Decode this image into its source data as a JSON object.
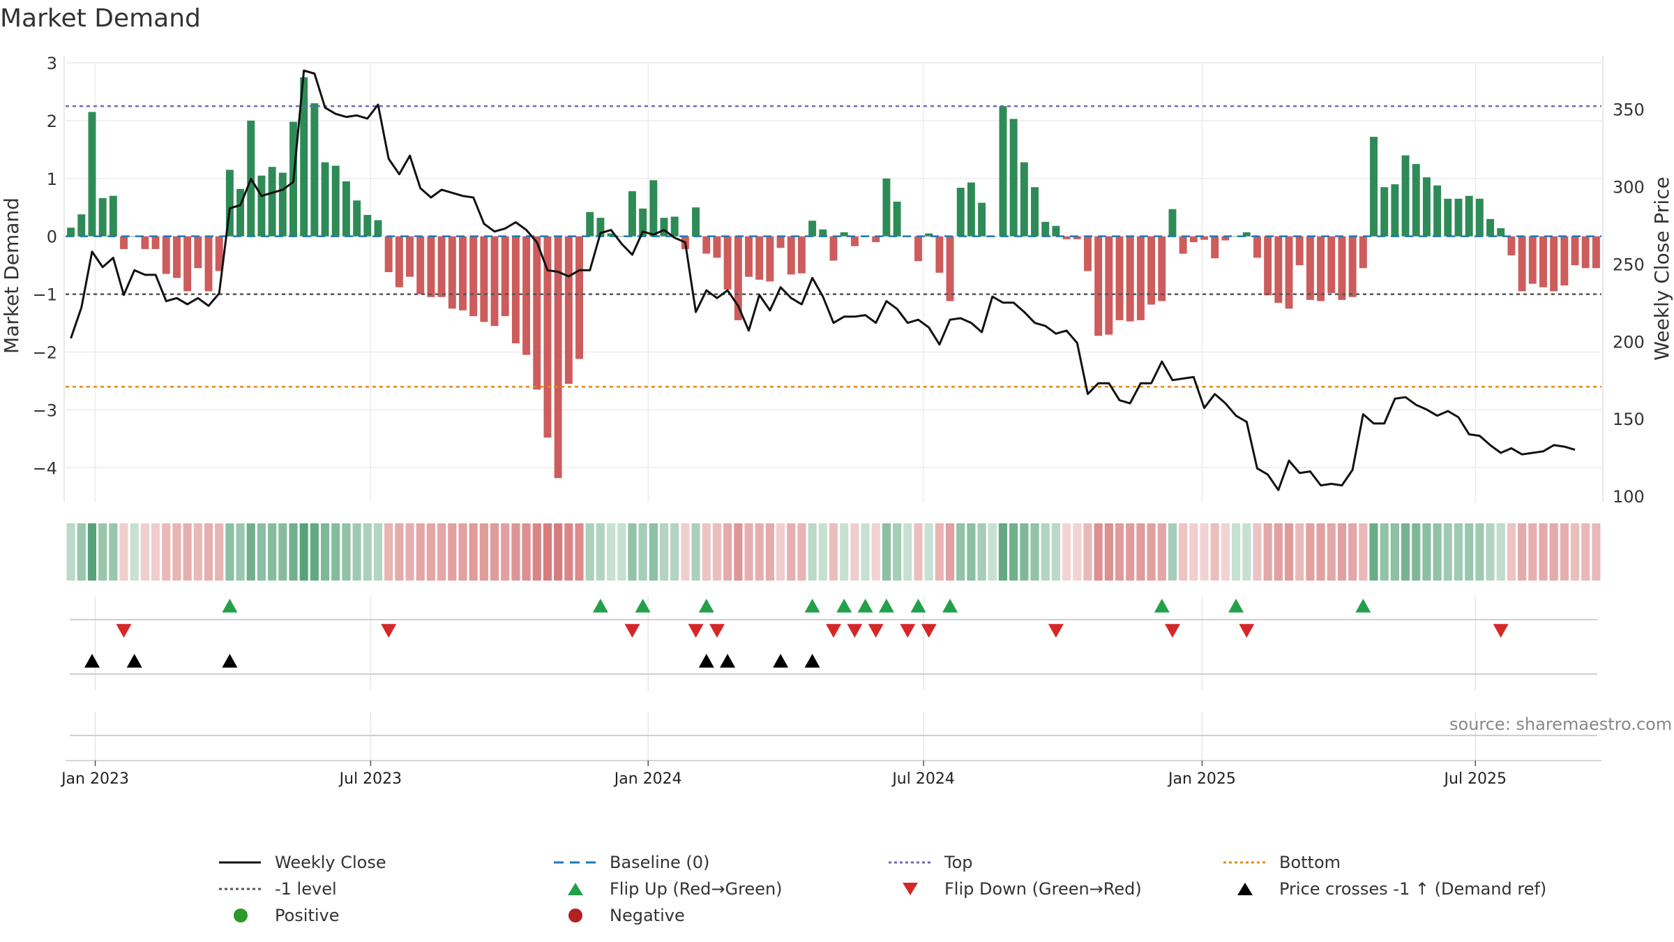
{
  "title": "Market Demand",
  "source_label": "source: sharemaestro.com",
  "colors": {
    "positive": "#2e8b57",
    "negative": "#cd5c5c",
    "price_line": "#111111",
    "top": "#6a6ab8",
    "minus_one": "#555555",
    "bottom": "#e08a1e",
    "baseline": "#1f77b4",
    "flip_up": "#23a04a",
    "flip_down": "#d62728",
    "cross": "#000000",
    "positive_dot": "#2a9a2a",
    "negative_dot": "#b22222"
  },
  "chart_data": {
    "type": "bar",
    "title": "Market Demand",
    "ylabel": "Market Demand",
    "y2label": "Weekly Close Price",
    "ylim": [
      -4.6,
      3.0
    ],
    "yticks": [
      3,
      2,
      1,
      0,
      -1,
      -2,
      -3,
      -4
    ],
    "ytick_labels": [
      "3",
      "2",
      "1",
      "0",
      "−1",
      "−2",
      "−3",
      "−4"
    ],
    "y2lim": [
      96,
      380
    ],
    "y2ticks": [
      350,
      300,
      250,
      200,
      150,
      100
    ],
    "y2tick_labels": [
      "350",
      "300",
      "250",
      "200",
      "150",
      "100"
    ],
    "xticks": [
      {
        "label": "Jan 2023",
        "index": 2.3
      },
      {
        "label": "Jul 2023",
        "index": 28.3
      },
      {
        "label": "Jan 2024",
        "index": 54.5
      },
      {
        "label": "Jul 2024",
        "index": 80.5
      },
      {
        "label": "Jan 2025",
        "index": 106.8
      },
      {
        "label": "Jul 2025",
        "index": 132.6
      }
    ],
    "reference_lines": {
      "top": 2.25,
      "minus_one": -1.0,
      "bottom": -2.6,
      "baseline": 0
    },
    "demand": [
      0.15,
      0.38,
      2.15,
      0.66,
      0.7,
      -0.22,
      0.0,
      -0.22,
      -0.22,
      -0.65,
      -0.72,
      -0.95,
      -0.55,
      -0.95,
      -0.6,
      1.15,
      0.82,
      2.0,
      1.05,
      1.2,
      1.1,
      1.98,
      2.75,
      2.3,
      1.28,
      1.22,
      0.95,
      0.62,
      0.37,
      0.28,
      -0.62,
      -0.88,
      -0.7,
      -1.0,
      -1.05,
      -1.05,
      -1.25,
      -1.28,
      -1.38,
      -1.48,
      -1.55,
      -1.38,
      -1.85,
      -2.05,
      -2.65,
      -3.48,
      -4.18,
      -2.55,
      -2.12,
      0.42,
      0.32,
      0.05,
      0.0,
      0.78,
      0.48,
      0.97,
      0.32,
      0.34,
      -0.22,
      0.5,
      -0.3,
      -0.37,
      -0.92,
      -1.45,
      -0.7,
      -0.75,
      -0.78,
      -0.2,
      -0.66,
      -0.64,
      0.27,
      0.12,
      -0.42,
      0.07,
      -0.17,
      0.0,
      -0.1,
      1.0,
      0.6,
      0.0,
      -0.43,
      0.05,
      -0.63,
      -1.12,
      0.84,
      0.93,
      0.58,
      0.0,
      2.25,
      2.03,
      1.28,
      0.85,
      0.25,
      0.18,
      -0.05,
      -0.05,
      -0.6,
      -1.72,
      -1.7,
      -1.45,
      -1.47,
      -1.45,
      -1.18,
      -1.12,
      0.47,
      -0.3,
      -0.1,
      -0.06,
      -0.38,
      -0.07,
      0.0,
      0.07,
      -0.37,
      -1.02,
      -1.15,
      -1.25,
      -0.5,
      -1.1,
      -1.12,
      -0.98,
      -1.1,
      -1.05,
      -0.55,
      1.72,
      0.85,
      0.9,
      1.4,
      1.25,
      1.02,
      0.88,
      0.65,
      0.65,
      0.7,
      0.65,
      0.3,
      0.14,
      -0.33,
      -0.95,
      -0.82,
      -0.88,
      -0.95,
      -0.85,
      -0.5,
      -0.55,
      -0.55
    ],
    "price": [
      202,
      222,
      258,
      248,
      254,
      230,
      246,
      243,
      243,
      226,
      228,
      224,
      228,
      223,
      231,
      286,
      288,
      305,
      294,
      296,
      298,
      303,
      375,
      373,
      351,
      347,
      345,
      346,
      344,
      353,
      318,
      308,
      320,
      299,
      293,
      298,
      296,
      294,
      293,
      276,
      271,
      273,
      277,
      272,
      264,
      246,
      245,
      242,
      246,
      246,
      270,
      272,
      263,
      256,
      271,
      269,
      272,
      267,
      264,
      219,
      233,
      228,
      233,
      223,
      207,
      230,
      220,
      235,
      228,
      224,
      241,
      229,
      212,
      216,
      216,
      217,
      212,
      226,
      221,
      212,
      214,
      209,
      198,
      214,
      215,
      212,
      206,
      229,
      225,
      225,
      219,
      212,
      210,
      205,
      207,
      199,
      166,
      173,
      173,
      162,
      160,
      173,
      173,
      187,
      175,
      176,
      177,
      157,
      166,
      160,
      152,
      148,
      118,
      114,
      104,
      123,
      115,
      116,
      107,
      108,
      107,
      117,
      153,
      147,
      147,
      163,
      164,
      159,
      156,
      152,
      155,
      151,
      140,
      139,
      133,
      128,
      131,
      127,
      128,
      129,
      133,
      132,
      130
    ],
    "heat_levels": [
      0.25,
      0.5,
      1.0,
      0.5,
      0.5,
      0.2,
      0.15,
      0.2,
      0.2,
      0.4,
      0.45,
      0.5,
      0.4,
      0.5,
      0.45,
      0.6,
      0.5,
      0.8,
      0.6,
      0.65,
      0.65,
      0.8,
      1.0,
      0.9,
      0.7,
      0.65,
      0.55,
      0.45,
      0.35,
      0.3,
      0.45,
      0.55,
      0.5,
      0.6,
      0.6,
      0.6,
      0.65,
      0.65,
      0.7,
      0.7,
      0.7,
      0.65,
      0.75,
      0.8,
      0.9,
      1.0,
      1.0,
      0.9,
      0.85,
      0.35,
      0.3,
      0.15,
      0.15,
      0.55,
      0.4,
      0.6,
      0.3,
      0.3,
      0.2,
      0.35,
      0.3,
      0.35,
      0.55,
      0.75,
      0.5,
      0.5,
      0.55,
      0.2,
      0.5,
      0.45,
      0.25,
      0.15,
      0.35,
      0.15,
      0.2,
      0.15,
      0.15,
      0.6,
      0.4,
      0.15,
      0.35,
      0.15,
      0.45,
      0.65,
      0.55,
      0.6,
      0.4,
      0.15,
      0.9,
      0.8,
      0.7,
      0.55,
      0.3,
      0.25,
      0.15,
      0.15,
      0.4,
      0.8,
      0.8,
      0.7,
      0.7,
      0.7,
      0.65,
      0.6,
      0.4,
      0.3,
      0.2,
      0.15,
      0.35,
      0.15,
      0.15,
      0.15,
      0.3,
      0.6,
      0.65,
      0.7,
      0.4,
      0.65,
      0.65,
      0.6,
      0.65,
      0.6,
      0.4,
      0.85,
      0.55,
      0.6,
      0.75,
      0.7,
      0.6,
      0.55,
      0.45,
      0.45,
      0.5,
      0.45,
      0.3,
      0.2,
      0.3,
      0.55,
      0.5,
      0.55,
      0.55,
      0.5,
      0.35,
      0.4,
      0.4
    ],
    "flip_up_indices": [
      15,
      50,
      54,
      60,
      70,
      73,
      75,
      77,
      80,
      83,
      103,
      110,
      122
    ],
    "flip_down_indices": [
      5,
      30,
      53,
      59,
      61,
      72,
      74,
      76,
      79,
      81,
      93,
      104,
      111,
      135
    ],
    "price_cross_indices": [
      2,
      6,
      15,
      60,
      62,
      67,
      70
    ]
  },
  "legend": [
    {
      "label": "Weekly Close",
      "marker": "solid-line"
    },
    {
      "label": "Baseline (0)",
      "marker": "dashed-line"
    },
    {
      "label": "Top",
      "marker": "dotted-line"
    },
    {
      "label": "Bottom",
      "marker": "dotted-line"
    },
    {
      "label": "-1 level",
      "marker": "dotted-line"
    },
    {
      "label": "Flip Up (Red→Green)",
      "marker": "triangle-up"
    },
    {
      "label": "Flip Down (Green→Red)",
      "marker": "triangle-down"
    },
    {
      "label": "Price crosses -1 ↑ (Demand ref)",
      "marker": "triangle-up"
    },
    {
      "label": "Positive",
      "marker": "dot"
    },
    {
      "label": "Negative",
      "marker": "dot"
    }
  ]
}
